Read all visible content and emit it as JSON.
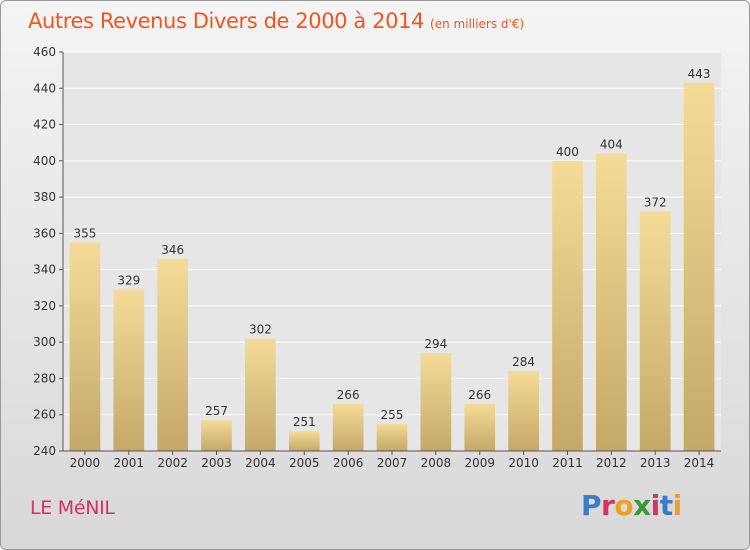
{
  "title": "Autres Revenus Divers de 2000 à 2014",
  "unit_note": "(en milliers d'€)",
  "commune": "LE MéNIL",
  "logo_text": "Proxiti",
  "colors": {
    "title": "#f0561e",
    "commune": "#d83060",
    "bar_top": "#f4dc98",
    "bar_bottom": "#c4a868",
    "logo_letters": [
      "#3a7cc8",
      "#d83060",
      "#f0a020",
      "#3a9a3a",
      "#d83060",
      "#3a7cc8",
      "#f0a020"
    ]
  },
  "chart_data": {
    "type": "bar",
    "categories": [
      "2000",
      "2001",
      "2002",
      "2003",
      "2004",
      "2005",
      "2006",
      "2007",
      "2008",
      "2009",
      "2010",
      "2011",
      "2012",
      "2013",
      "2014"
    ],
    "values": [
      355,
      329,
      346,
      257,
      302,
      251,
      266,
      255,
      294,
      266,
      284,
      400,
      404,
      372,
      443
    ],
    "title": "Autres Revenus Divers de 2000 à 2014",
    "ylim": [
      240,
      460
    ],
    "yticks": [
      240,
      260,
      280,
      300,
      320,
      340,
      360,
      380,
      400,
      420,
      440,
      460
    ],
    "grid": true,
    "data_labels": true
  }
}
